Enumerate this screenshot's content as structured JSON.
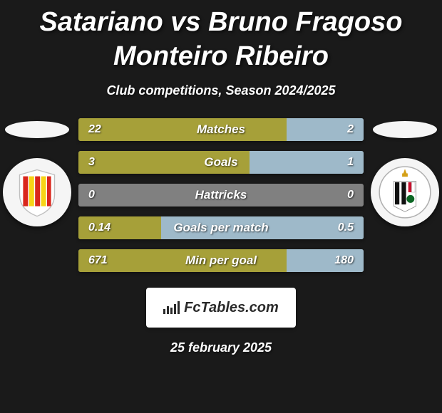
{
  "title": "Satariano vs Bruno Fragoso Monteiro Ribeiro",
  "subtitle": "Club competitions, Season 2024/2025",
  "date": "25 february 2025",
  "logo_text": "FcTables.com",
  "colors": {
    "left_bar": "#a6a039",
    "right_bar": "#9eb9c9",
    "neutral_bar": "#808080",
    "background": "#1a1a1a",
    "text": "#ffffff"
  },
  "fonts": {
    "title_size": 38,
    "subtitle_size": 18,
    "bar_label_size": 17,
    "bar_value_size": 16
  },
  "bars": [
    {
      "label": "Matches",
      "left_val": "22",
      "right_val": "2",
      "left_pct": 73,
      "right_pct": 27
    },
    {
      "label": "Goals",
      "left_val": "3",
      "right_val": "1",
      "left_pct": 60,
      "right_pct": 40
    },
    {
      "label": "Hattricks",
      "left_val": "0",
      "right_val": "0",
      "left_pct": 0,
      "right_pct": 0
    },
    {
      "label": "Goals per match",
      "left_val": "0.14",
      "right_val": "0.5",
      "left_pct": 29,
      "right_pct": 71
    },
    {
      "label": "Min per goal",
      "left_val": "671",
      "right_val": "180",
      "left_pct": 73,
      "right_pct": 27
    }
  ],
  "left_club": {
    "name": "Birkirkara FC",
    "stripes": [
      "#d9261c",
      "#f7d416"
    ]
  },
  "right_club": {
    "name": "Hibernians FC",
    "stripes": [
      "#ffffff",
      "#111111"
    ]
  }
}
